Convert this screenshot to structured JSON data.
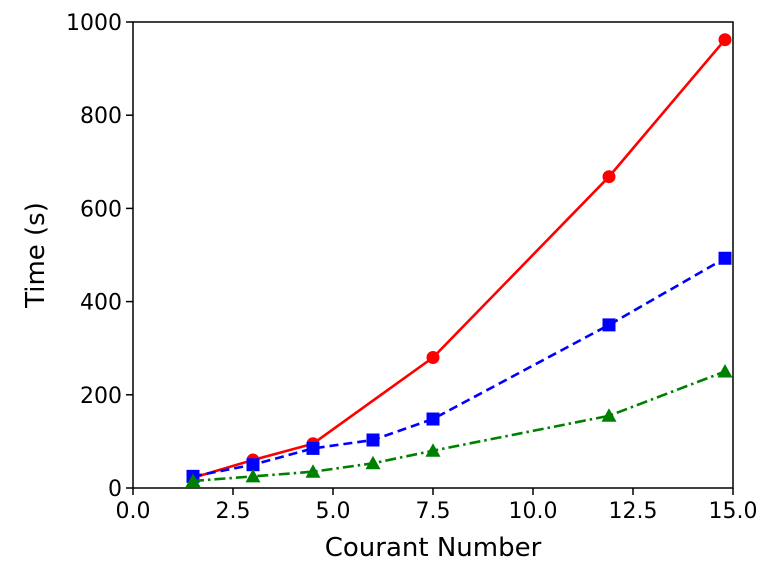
{
  "chart_data": {
    "type": "line",
    "title": "",
    "xlabel": "Courant Number",
    "ylabel": "Time (s)",
    "xlim": [
      0.0,
      15.0
    ],
    "ylim": [
      0,
      1000
    ],
    "xticks": [
      0.0,
      2.5,
      5.0,
      7.5,
      10.0,
      12.5,
      15.0
    ],
    "xtick_labels": [
      "0.0",
      "2.5",
      "5.0",
      "7.5",
      "10.0",
      "12.5",
      "15.0"
    ],
    "yticks": [
      0,
      200,
      400,
      600,
      800,
      1000
    ],
    "ytick_labels": [
      "0",
      "200",
      "400",
      "600",
      "800",
      "1000"
    ],
    "grid": false,
    "legend": "none",
    "series": [
      {
        "color": "#ff0000",
        "line_style": "solid",
        "marker": "circle",
        "x": [
          1.5,
          3.0,
          4.5,
          7.5,
          11.9,
          14.8
        ],
        "y": [
          22,
          60,
          95,
          280,
          668,
          962
        ]
      },
      {
        "color": "#0000ff",
        "line_style": "dashed",
        "marker": "square",
        "x": [
          1.5,
          3.0,
          4.5,
          6.0,
          7.5,
          11.9,
          14.8
        ],
        "y": [
          25,
          50,
          85,
          103,
          148,
          350,
          493
        ]
      },
      {
        "color": "#008000",
        "line_style": "dashdot",
        "marker": "triangle",
        "x": [
          1.5,
          3.0,
          4.5,
          6.0,
          7.5,
          11.9,
          14.8
        ],
        "y": [
          15,
          25,
          35,
          53,
          80,
          155,
          250
        ]
      }
    ]
  }
}
